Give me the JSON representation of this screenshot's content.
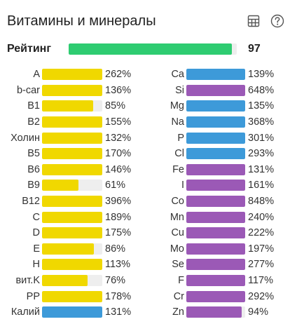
{
  "title": "Витамины и минералы",
  "icons": {
    "table": "table-icon",
    "help": "help-icon"
  },
  "rating": {
    "label": "Рейтинг",
    "value": "97",
    "percent": 97,
    "color": "#2ecc71"
  },
  "colors": {
    "yellow": "#f0d800",
    "blue": "#3d9ad9",
    "purple": "#9b59b6",
    "track": "#eeeeee"
  },
  "vitamins": [
    {
      "name": "A",
      "value": "262%",
      "fill": 100,
      "color": "yellow"
    },
    {
      "name": "b-car",
      "value": "136%",
      "fill": 100,
      "color": "yellow"
    },
    {
      "name": "B1",
      "value": "85%",
      "fill": 85,
      "color": "yellow"
    },
    {
      "name": "B2",
      "value": "155%",
      "fill": 100,
      "color": "yellow"
    },
    {
      "name": "Холин",
      "value": "132%",
      "fill": 100,
      "color": "yellow"
    },
    {
      "name": "B5",
      "value": "170%",
      "fill": 100,
      "color": "yellow"
    },
    {
      "name": "B6",
      "value": "146%",
      "fill": 100,
      "color": "yellow"
    },
    {
      "name": "B9",
      "value": "61%",
      "fill": 61,
      "color": "yellow"
    },
    {
      "name": "B12",
      "value": "396%",
      "fill": 100,
      "color": "yellow"
    },
    {
      "name": "C",
      "value": "189%",
      "fill": 100,
      "color": "yellow"
    },
    {
      "name": "D",
      "value": "175%",
      "fill": 100,
      "color": "yellow"
    },
    {
      "name": "E",
      "value": "86%",
      "fill": 86,
      "color": "yellow"
    },
    {
      "name": "H",
      "value": "113%",
      "fill": 100,
      "color": "yellow"
    },
    {
      "name": "вит.K",
      "value": "76%",
      "fill": 76,
      "color": "yellow"
    },
    {
      "name": "PP",
      "value": "178%",
      "fill": 100,
      "color": "yellow"
    },
    {
      "name": "Калий",
      "value": "131%",
      "fill": 100,
      "color": "blue"
    }
  ],
  "minerals": [
    {
      "name": "Ca",
      "value": "139%",
      "fill": 100,
      "color": "blue"
    },
    {
      "name": "Si",
      "value": "648%",
      "fill": 100,
      "color": "purple"
    },
    {
      "name": "Mg",
      "value": "135%",
      "fill": 100,
      "color": "blue"
    },
    {
      "name": "Na",
      "value": "368%",
      "fill": 100,
      "color": "blue"
    },
    {
      "name": "P",
      "value": "301%",
      "fill": 100,
      "color": "blue"
    },
    {
      "name": "Cl",
      "value": "293%",
      "fill": 100,
      "color": "blue"
    },
    {
      "name": "Fe",
      "value": "131%",
      "fill": 100,
      "color": "purple"
    },
    {
      "name": "I",
      "value": "161%",
      "fill": 100,
      "color": "purple"
    },
    {
      "name": "Co",
      "value": "848%",
      "fill": 100,
      "color": "purple"
    },
    {
      "name": "Mn",
      "value": "240%",
      "fill": 100,
      "color": "purple"
    },
    {
      "name": "Cu",
      "value": "222%",
      "fill": 100,
      "color": "purple"
    },
    {
      "name": "Mo",
      "value": "197%",
      "fill": 100,
      "color": "purple"
    },
    {
      "name": "Se",
      "value": "277%",
      "fill": 100,
      "color": "purple"
    },
    {
      "name": "F",
      "value": "117%",
      "fill": 100,
      "color": "purple"
    },
    {
      "name": "Cr",
      "value": "292%",
      "fill": 100,
      "color": "purple"
    },
    {
      "name": "Zn",
      "value": "94%",
      "fill": 94,
      "color": "purple"
    }
  ]
}
